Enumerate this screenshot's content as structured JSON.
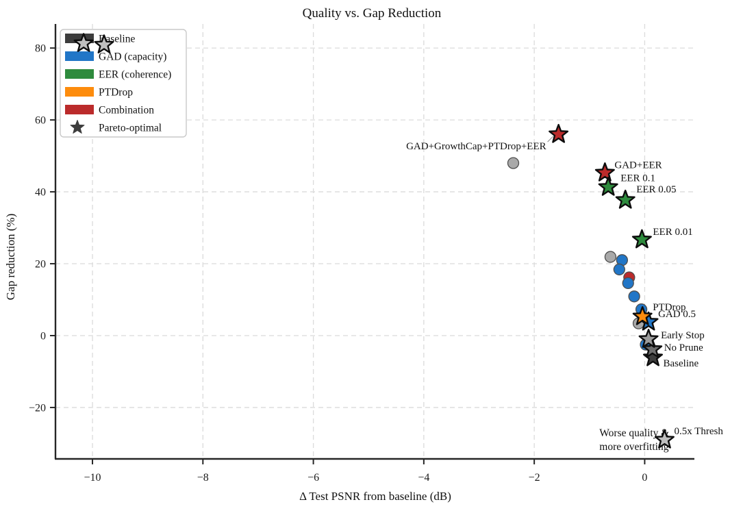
{
  "chart_data": {
    "type": "scatter",
    "title": "Quality vs. Gap Reduction",
    "xlabel": "Δ Test PSNR from baseline (dB)",
    "ylabel": "Gap reduction (%)",
    "xlim": [
      -10.67,
      0.9
    ],
    "ylim": [
      -34.3,
      86.7
    ],
    "xticks": [
      -10,
      -8,
      -6,
      -4,
      -2,
      0
    ],
    "xtick_labels": [
      "−10",
      "−8",
      "−6",
      "−4",
      "−2",
      "0"
    ],
    "yticks": [
      -20,
      0,
      20,
      40,
      60,
      80
    ],
    "ytick_labels": [
      "−20",
      "0",
      "20",
      "40",
      "60",
      "80"
    ],
    "grid": "dashed",
    "colors": {
      "baseline-gray": "#a9a9a9",
      "gad-blue": "#2176c7",
      "eer-green": "#2e8b3d",
      "ptdrop-orange": "#fd8c0d",
      "combination-red": "#bb2b2b",
      "silver": "#bfbfbf",
      "baseline-dark": "#3d3d3d",
      "baseline-mid": "#6e6e6e",
      "baseline-light": "#9c9c9c",
      "grid": "#dbdbdb",
      "spine": "#262626",
      "annotation": "#cd5c5c"
    },
    "legend": {
      "position": "upper-left",
      "entries": [
        {
          "label": "Baseline",
          "swatch": "rect",
          "color": "#3d3d3d"
        },
        {
          "label": "GAD (capacity)",
          "swatch": "rect",
          "color": "#2176c7"
        },
        {
          "label": "EER (coherence)",
          "swatch": "rect",
          "color": "#2e8b3d"
        },
        {
          "label": "PTDrop",
          "swatch": "rect",
          "color": "#fd8c0d"
        },
        {
          "label": "Combination",
          "swatch": "rect",
          "color": "#bb2b2b"
        },
        {
          "label": "Pareto-optimal",
          "swatch": "star",
          "color": "#3d3d3d"
        }
      ]
    },
    "series": [
      {
        "name": "runs",
        "marker": "circle",
        "points": [
          {
            "x": -2.38,
            "y": 48.0,
            "group": "baseline-gray"
          },
          {
            "x": -0.62,
            "y": 21.9,
            "group": "baseline-gray"
          },
          {
            "x": -0.41,
            "y": 21.0,
            "group": "gad-blue"
          },
          {
            "x": -0.46,
            "y": 18.4,
            "group": "gad-blue"
          },
          {
            "x": -0.28,
            "y": 16.2,
            "group": "combination-red"
          },
          {
            "x": -0.3,
            "y": 14.6,
            "group": "gad-blue"
          },
          {
            "x": -0.19,
            "y": 10.9,
            "group": "gad-blue"
          },
          {
            "x": -0.11,
            "y": 3.4,
            "group": "baseline-gray"
          },
          {
            "x": -0.06,
            "y": 7.3,
            "group": "gad-blue"
          },
          {
            "x": 0.02,
            "y": -2.5,
            "group": "gad-blue"
          }
        ]
      },
      {
        "name": "pareto",
        "marker": "star",
        "points": [
          {
            "x": -10.16,
            "y": 81.3,
            "group": "silver"
          },
          {
            "x": -9.79,
            "y": 80.9,
            "group": "silver"
          },
          {
            "x": -1.56,
            "y": 56.0,
            "group": "combination-red",
            "label": "GAD+GrowthCap+PTDrop+EER",
            "label_dx": -18,
            "label_dy": 22,
            "label_anchor": "end",
            "leader": true
          },
          {
            "x": -0.72,
            "y": 45.3,
            "group": "combination-red",
            "label": "GAD+EER",
            "label_dx": 14,
            "label_dy": -7
          },
          {
            "x": -0.66,
            "y": 41.3,
            "group": "eer-green",
            "label": "EER 0.1",
            "label_dx": 18,
            "label_dy": -9
          },
          {
            "x": -0.35,
            "y": 37.7,
            "group": "eer-green",
            "label": "EER 0.05",
            "label_dx": 16,
            "label_dy": -11
          },
          {
            "x": -0.05,
            "y": 26.7,
            "group": "eer-green",
            "label": "EER 0.01",
            "label_dx": 16,
            "label_dy": -7
          },
          {
            "x": 0.36,
            "y": -29.0,
            "group": "silver",
            "label": "0.5x Thresh",
            "label_dx": 14,
            "label_dy": -8
          },
          {
            "x": 0.15,
            "y": -6.1,
            "group": "baseline-dark",
            "label": "Baseline",
            "label_dx": 15,
            "label_dy": 13
          },
          {
            "x": 0.14,
            "y": -3.8,
            "group": "baseline-mid",
            "label": "No Prune",
            "label_dx": 17,
            "label_dy": 2
          },
          {
            "x": 0.07,
            "y": -1.0,
            "group": "baseline-light",
            "label": "Early Stop",
            "label_dx": 18,
            "label_dy": -1
          },
          {
            "x": 0.07,
            "y": 3.8,
            "group": "gad-blue",
            "label": "GAD 0.5",
            "label_dx": 14,
            "label_dy": -7
          },
          {
            "x": -0.04,
            "y": 5.3,
            "group": "ptdrop-orange",
            "label": "PTDrop",
            "label_dx": 15,
            "label_dy": -9
          }
        ]
      }
    ],
    "annotation": {
      "lines": [
        "Worse quality &",
        "more overfitting"
      ],
      "color": "#cd5c5c",
      "x": -0.82,
      "y": -28.0
    }
  }
}
